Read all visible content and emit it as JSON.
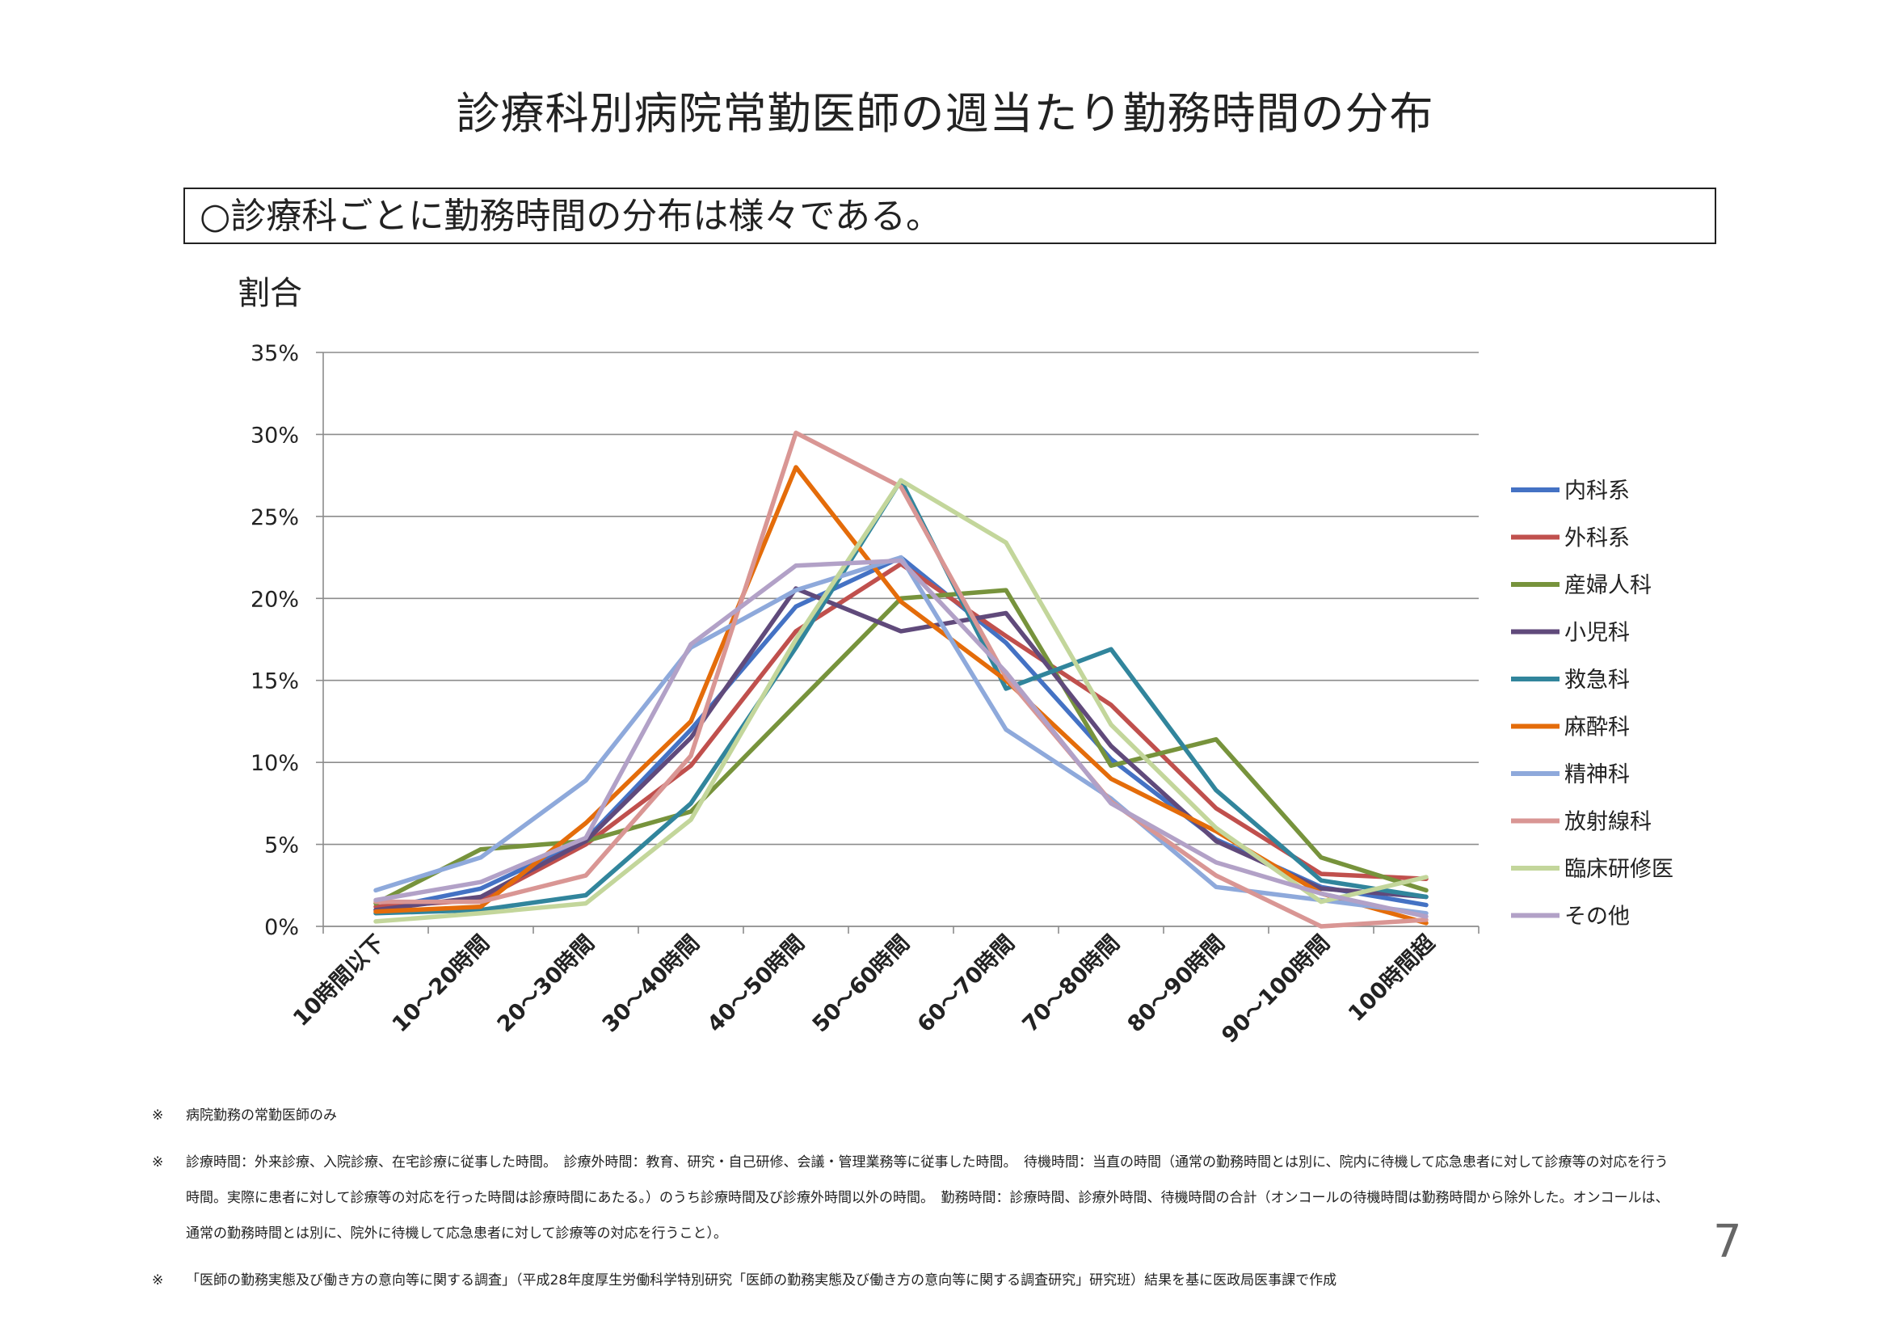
{
  "header": {
    "title": "診療科別病院常勤医師の週当たり勤務時間の分布",
    "subtitle": "○診療科ごとに勤務時間の分布は様々である。"
  },
  "chart_data": {
    "type": "line",
    "title": "",
    "xlabel": "",
    "ylabel": "割合",
    "ylim": [
      0,
      35
    ],
    "ytick_labels": [
      "0%",
      "5%",
      "10%",
      "15%",
      "20%",
      "25%",
      "30%",
      "35%"
    ],
    "grid": true,
    "legend_position": "right",
    "categories": [
      "10時間以下",
      "10～20時間",
      "20～30時間",
      "30～40時間",
      "40～50時間",
      "50～60時間",
      "60～70時間",
      "70～80時間",
      "80～90時間",
      "90～100時間",
      "100時間超"
    ],
    "series": [
      {
        "name": "内科系",
        "color": "#4472c4",
        "values": [
          1.0,
          2.3,
          5.3,
          12.0,
          19.5,
          22.5,
          17.3,
          10.2,
          5.3,
          2.4,
          1.3
        ]
      },
      {
        "name": "外科系",
        "color": "#c0504d",
        "values": [
          1.2,
          1.6,
          5.0,
          9.8,
          18.0,
          22.1,
          17.7,
          13.5,
          7.2,
          3.2,
          2.9
        ]
      },
      {
        "name": "産婦人科",
        "color": "#77933c",
        "values": [
          1.4,
          4.7,
          5.2,
          7.0,
          13.5,
          20.0,
          20.5,
          9.8,
          11.4,
          4.2,
          2.2
        ]
      },
      {
        "name": "小児科",
        "color": "#604a7b",
        "values": [
          1.0,
          1.8,
          5.2,
          11.5,
          20.6,
          18.0,
          19.1,
          11.0,
          5.2,
          2.3,
          1.8
        ]
      },
      {
        "name": "救急科",
        "color": "#31859c",
        "values": [
          0.8,
          1.0,
          1.9,
          7.5,
          17.0,
          27.2,
          14.5,
          16.9,
          8.3,
          2.8,
          1.8
        ]
      },
      {
        "name": "麻酔科",
        "color": "#e46c0a",
        "values": [
          0.9,
          1.2,
          6.3,
          12.5,
          28.0,
          19.8,
          15.0,
          9.0,
          5.8,
          2.0,
          0.2
        ]
      },
      {
        "name": "精神科",
        "color": "#8ea9db",
        "values": [
          2.2,
          4.2,
          8.9,
          17.0,
          20.5,
          22.5,
          12.0,
          7.8,
          2.4,
          1.6,
          0.8
        ]
      },
      {
        "name": "放射線科",
        "color": "#d99694",
        "values": [
          1.5,
          1.5,
          3.1,
          10.4,
          30.1,
          26.8,
          15.2,
          7.6,
          3.1,
          0.0,
          0.4
        ]
      },
      {
        "name": "臨床研修医",
        "color": "#c3d69b",
        "values": [
          0.3,
          0.8,
          1.4,
          6.5,
          17.5,
          27.2,
          23.4,
          12.3,
          6.0,
          1.5,
          3.0
        ]
      },
      {
        "name": "その他",
        "color": "#b2a1c7",
        "values": [
          1.6,
          2.7,
          5.4,
          17.2,
          22.0,
          22.3,
          15.5,
          7.5,
          3.9,
          2.0,
          0.6
        ]
      }
    ]
  },
  "footnotes": [
    {
      "mark": "※",
      "text": "病院勤務の常勤医師のみ"
    },
    {
      "mark": "※",
      "text": "診療時間：外来診療、入院診療、在宅診療に従事した時間。　診療外時間：教育、研究・自己研修、会議・管理業務等に従事した時間。　待機時間：当直の時間（通常の勤務時間とは別に、院内に待機して応急患者に対して診療等の対応を行う時間。実際に患者に対して診療等の対応を行った時間は診療時間にあたる。）のうち診療時間及び診療外時間以外の時間。　勤務時間：診療時間、診療外時間、待機時間の合計（オンコールの待機時間は勤務時間から除外した。オンコールは、通常の勤務時間とは別に、院外に待機して応急患者に対して診療等の対応を行うこと）。"
    },
    {
      "mark": "※",
      "text": "「医師の勤務実態及び働き方の意向等に関する調査」（平成28年度厚生労働科学特別研究「医師の勤務実態及び働き方の意向等に関する調査研究」研究班）結果を基に医政局医事課で作成"
    }
  ],
  "page_number": "7"
}
